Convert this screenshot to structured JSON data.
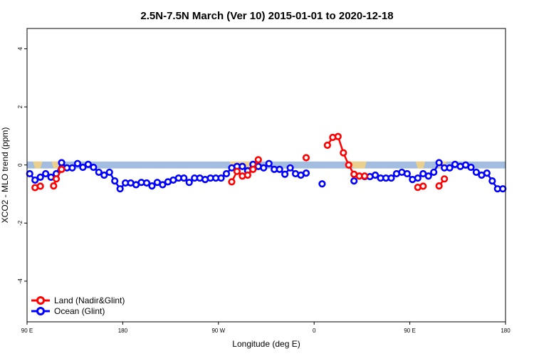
{
  "chart_data": {
    "type": "line",
    "title": "2.5N-7.5N March (Ver 10)   2015-01-01 to 2020-12-18",
    "xlabel": "Longitude (deg E)",
    "ylabel": "XCO2 - MLO trend (ppm)",
    "xlim": [
      90,
      540
    ],
    "ylim": [
      -5.4,
      4.7
    ],
    "x_ticks": [
      {
        "value": 90,
        "label": "90 E"
      },
      {
        "value": 180,
        "label": "180"
      },
      {
        "value": 270,
        "label": "90 W"
      },
      {
        "value": 360,
        "label": "0"
      },
      {
        "value": 450,
        "label": "90 E"
      },
      {
        "value": 540,
        "label": "180"
      }
    ],
    "y_ticks": [
      {
        "value": -4,
        "label": "-4"
      },
      {
        "value": -2,
        "label": "-2"
      },
      {
        "value": 0,
        "label": "0"
      },
      {
        "value": 2,
        "label": "2"
      },
      {
        "value": 4,
        "label": "4"
      }
    ],
    "background_band": {
      "y_from": -0.12,
      "y_to": 0.12,
      "color": "#a3bde0"
    },
    "land_fill_color": "#f7d47c",
    "series": [
      {
        "name": "Land (Nadir&Glint)",
        "color": "#ff0000",
        "x": [
          97.5,
          102.5,
          115,
          117.5,
          122.5,
          282.5,
          287.5,
          292.5,
          297.5,
          302.5,
          307.5,
          352.5,
          372.5,
          377.5,
          382.5,
          387.5,
          392.5,
          397.5,
          402.5,
          407.5,
          457.5,
          462.5,
          477.5,
          482.5
        ],
        "values": [
          -0.78,
          -0.73,
          -0.72,
          -0.48,
          -0.15,
          -0.58,
          -0.22,
          -0.38,
          -0.35,
          -0.15,
          0.18,
          0.25,
          0.68,
          0.95,
          0.98,
          0.42,
          0.0,
          -0.32,
          -0.38,
          -0.38,
          -0.77,
          -0.73,
          -0.72,
          -0.48
        ]
      },
      {
        "name": "Ocean (Glint)",
        "color": "#0000ff",
        "x": [
          92.5,
          97.5,
          102.5,
          107.5,
          112.5,
          117.5,
          122.5,
          127.5,
          132.5,
          137.5,
          142.5,
          147.5,
          152.5,
          157.5,
          162.5,
          167.5,
          172.5,
          177.5,
          182.5,
          187.5,
          192.5,
          197.5,
          202.5,
          207.5,
          212.5,
          217.5,
          222.5,
          227.5,
          232.5,
          237.5,
          242.5,
          247.5,
          252.5,
          257.5,
          262.5,
          267.5,
          272.5,
          277.5,
          282.5,
          287.5,
          292.5,
          297.5,
          302.5,
          307.5,
          312.5,
          317.5,
          322.5,
          327.5,
          332.5,
          337.5,
          342.5,
          347.5,
          352.5,
          367.5,
          397.5,
          407.5,
          412.5,
          417.5,
          422.5,
          427.5,
          432.5,
          437.5,
          442.5,
          447.5,
          452.5,
          457.5,
          462.5,
          467.5,
          472.5,
          477.5,
          482.5,
          487.5,
          492.5,
          497.5,
          502.5,
          507.5,
          512.5,
          517.5,
          522.5,
          527.5,
          532.5,
          537.5
        ],
        "values": [
          -0.3,
          -0.52,
          -0.42,
          -0.3,
          -0.42,
          -0.3,
          0.08,
          -0.1,
          -0.1,
          0.05,
          -0.08,
          0.02,
          -0.08,
          -0.25,
          -0.35,
          -0.25,
          -0.55,
          -0.82,
          -0.62,
          -0.62,
          -0.68,
          -0.6,
          -0.62,
          -0.72,
          -0.6,
          -0.68,
          -0.58,
          -0.52,
          -0.45,
          -0.45,
          -0.6,
          -0.45,
          -0.45,
          -0.5,
          -0.45,
          -0.45,
          -0.45,
          -0.3,
          -0.1,
          -0.05,
          -0.05,
          -0.2,
          0.02,
          -0.05,
          -0.1,
          0.05,
          -0.15,
          -0.15,
          -0.32,
          -0.1,
          -0.3,
          -0.35,
          -0.28,
          -0.65,
          -0.55,
          -0.4,
          -0.4,
          -0.35,
          -0.45,
          -0.45,
          -0.45,
          -0.3,
          -0.25,
          -0.3,
          -0.5,
          -0.45,
          -0.3,
          -0.38,
          -0.25,
          0.08,
          -0.1,
          -0.1,
          0.02,
          -0.05,
          0.0,
          -0.08,
          -0.25,
          -0.35,
          -0.28,
          -0.55,
          -0.82,
          -0.82
        ]
      }
    ],
    "legend": {
      "position": "bottom-left",
      "entries": [
        "Land (Nadir&Glint)",
        "Ocean (Glint)"
      ]
    }
  }
}
